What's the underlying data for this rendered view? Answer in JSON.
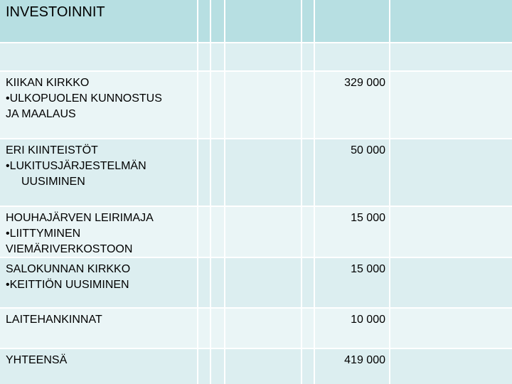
{
  "table": {
    "header": {
      "title": "INVESTOINNIT"
    },
    "rows": [
      {
        "lines": [
          "KIIKAN KIRKKO",
          "•ULKOPUOLEN KUNNOSTUS",
          "JA MAALAUS"
        ],
        "value": "329 000"
      },
      {
        "lines": [
          "ERI KIINTEISTÖT",
          "•LUKITUSJÄRJESTELMÄN",
          "UUSIMINEN"
        ],
        "value": "50 000"
      },
      {
        "lines": [
          "HOUHAJÄRVEN LEIRIMAJA",
          "•LIITTYMINEN",
          "VIEMÄRIVERKOSTOON"
        ],
        "value": "15 000"
      },
      {
        "lines": [
          "SALOKUNNAN KIRKKO",
          "•KEITTIÖN UUSIMINEN"
        ],
        "value": "15 000"
      },
      {
        "lines": [
          "LAITEHANKINNAT"
        ],
        "value": "10 000"
      },
      {
        "lines": [
          "YHTEENSÄ"
        ],
        "value": "419 000"
      }
    ]
  }
}
